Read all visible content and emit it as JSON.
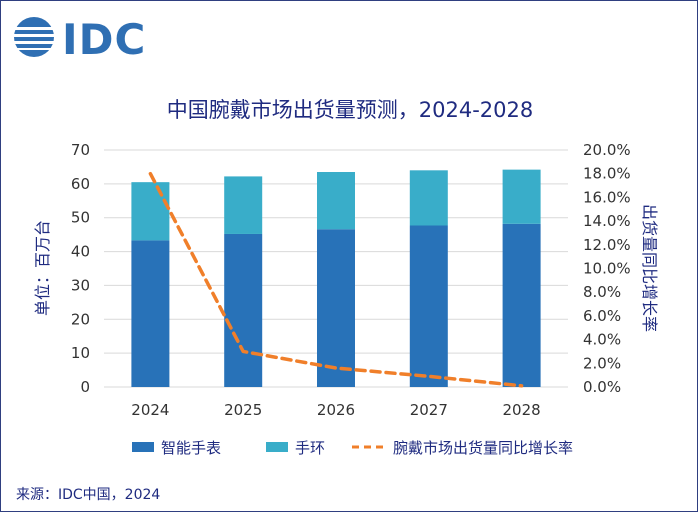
{
  "logo": {
    "text": "IDC",
    "color": "#2f6fb3"
  },
  "colors": {
    "smartwatch": "#2872b8",
    "band": "#39adc9",
    "growth": "#f07f2a",
    "text": "#1f2b80",
    "grid": "#d9d9d9"
  },
  "chart_data": {
    "type": "bar",
    "stacked": true,
    "title": "中国腕戴市场出货量预测，2024-2028",
    "categories": [
      "2024",
      "2025",
      "2026",
      "2027",
      "2028"
    ],
    "series": [
      {
        "name": "智能手表",
        "values": [
          43.3,
          45.2,
          46.6,
          47.7,
          48.2
        ]
      },
      {
        "name": "手环",
        "values": [
          17.2,
          17.0,
          16.9,
          16.3,
          16.0
        ]
      }
    ],
    "line_series": {
      "name": "腕戴市场出货量同比增长率",
      "values": [
        18.0,
        3.0,
        1.6,
        0.9,
        0.1
      ],
      "style": "dashed"
    },
    "ylabel": "单位：百万台",
    "y2label": "出货量同比增长率",
    "ylim": [
      0,
      70
    ],
    "y2lim": [
      0,
      20
    ],
    "yticks": [
      "0",
      "10",
      "20",
      "30",
      "40",
      "50",
      "60",
      "70"
    ],
    "y2ticks": [
      "0.0%",
      "2.0%",
      "4.0%",
      "6.0%",
      "8.0%",
      "10.0%",
      "12.0%",
      "14.0%",
      "16.0%",
      "18.0%",
      "20.0%"
    ],
    "grid": true,
    "legend_position": "bottom"
  },
  "source": "来源：IDC中国，2024"
}
